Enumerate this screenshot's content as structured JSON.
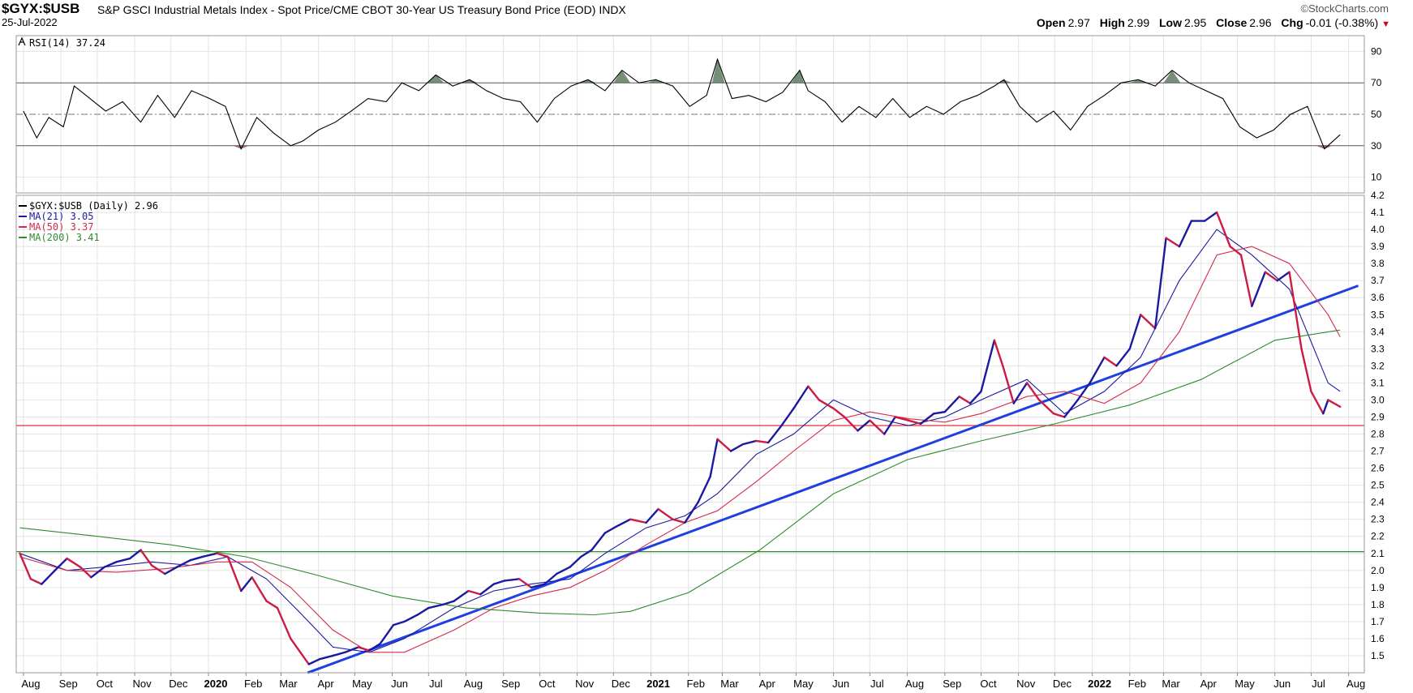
{
  "header": {
    "symbol": "$GYX:$USB",
    "description": "S&P GSCI Industrial Metals Index - Spot Price/CME CBOT 30-Year US Treasury Bond Price (EOD)",
    "exchange": "INDX",
    "date": "25-Jul-2022",
    "brand": "©StockCharts.com",
    "quote": {
      "open_label": "Open",
      "open": "2.97",
      "high_label": "High",
      "high": "2.99",
      "low_label": "Low",
      "low": "2.95",
      "close_label": "Close",
      "close": "2.96",
      "chg_label": "Chg",
      "chg": "-0.01 (-0.38%)"
    }
  },
  "chart_data": [
    {
      "type": "line",
      "panel": "rsi",
      "legend": "RSI(14) 37.24",
      "ylim": [
        0,
        100
      ],
      "y_ticks": [
        10,
        30,
        50,
        70,
        90
      ],
      "reference_lines": [
        30,
        50,
        70
      ],
      "series": [
        {
          "name": "RSI(14)",
          "color": "#000000",
          "x": [
            "2019-08-01",
            "2019-08-12",
            "2019-08-22",
            "2019-09-03",
            "2019-09-12",
            "2019-09-25",
            "2019-10-08",
            "2019-10-22",
            "2019-11-06",
            "2019-11-20",
            "2019-12-04",
            "2019-12-18",
            "2020-01-02",
            "2020-01-15",
            "2020-01-28",
            "2020-02-10",
            "2020-02-24",
            "2020-03-09",
            "2020-03-19",
            "2020-04-01",
            "2020-04-15",
            "2020-04-28",
            "2020-05-12",
            "2020-05-27",
            "2020-06-09",
            "2020-06-23",
            "2020-07-07",
            "2020-07-21",
            "2020-08-04",
            "2020-08-18",
            "2020-09-01",
            "2020-09-15",
            "2020-09-29",
            "2020-10-13",
            "2020-10-27",
            "2020-11-10",
            "2020-11-24",
            "2020-12-08",
            "2020-12-22",
            "2021-01-05",
            "2021-01-19",
            "2021-02-02",
            "2021-02-16",
            "2021-02-25",
            "2021-03-09",
            "2021-03-23",
            "2021-04-06",
            "2021-04-20",
            "2021-05-04",
            "2021-05-11",
            "2021-05-25",
            "2021-06-08",
            "2021-06-22",
            "2021-07-06",
            "2021-07-20",
            "2021-08-03",
            "2021-08-17",
            "2021-08-31",
            "2021-09-14",
            "2021-09-28",
            "2021-10-12",
            "2021-10-20",
            "2021-11-02",
            "2021-11-16",
            "2021-11-30",
            "2021-12-14",
            "2021-12-28",
            "2022-01-11",
            "2022-01-25",
            "2022-02-08",
            "2022-02-22",
            "2022-03-08",
            "2022-03-22",
            "2022-04-05",
            "2022-04-19",
            "2022-05-03",
            "2022-05-17",
            "2022-05-31",
            "2022-06-14",
            "2022-06-28",
            "2022-07-12",
            "2022-07-25"
          ],
          "y": [
            52,
            35,
            48,
            42,
            68,
            60,
            52,
            58,
            45,
            62,
            48,
            65,
            60,
            55,
            28,
            48,
            38,
            30,
            33,
            40,
            45,
            52,
            60,
            58,
            70,
            65,
            75,
            68,
            72,
            65,
            60,
            58,
            45,
            60,
            68,
            72,
            65,
            78,
            70,
            72,
            68,
            55,
            62,
            85,
            60,
            62,
            58,
            64,
            78,
            65,
            58,
            45,
            55,
            48,
            60,
            48,
            55,
            50,
            58,
            62,
            68,
            72,
            55,
            45,
            52,
            40,
            55,
            62,
            70,
            72,
            68,
            78,
            70,
            65,
            60,
            42,
            35,
            40,
            50,
            55,
            28,
            37
          ]
        }
      ]
    },
    {
      "type": "line",
      "panel": "price",
      "ylim": [
        1.4,
        4.2
      ],
      "y_ticks": [
        1.5,
        1.6,
        1.7,
        1.8,
        1.9,
        2.0,
        2.1,
        2.2,
        2.3,
        2.4,
        2.5,
        2.6,
        2.7,
        2.8,
        2.9,
        3.0,
        3.1,
        3.2,
        3.3,
        3.4,
        3.5,
        3.6,
        3.7,
        3.8,
        3.9,
        4.0,
        4.1,
        4.2
      ],
      "x_range": [
        "2019-07-26",
        "2022-08-14"
      ],
      "x_ticks": [
        {
          "date": "2019-08-01",
          "label": "Aug"
        },
        {
          "date": "2019-09-01",
          "label": "Sep"
        },
        {
          "date": "2019-10-01",
          "label": "Oct"
        },
        {
          "date": "2019-11-01",
          "label": "Nov"
        },
        {
          "date": "2019-12-01",
          "label": "Dec"
        },
        {
          "date": "2020-01-01",
          "label": "2020",
          "bold": true
        },
        {
          "date": "2020-02-01",
          "label": "Feb"
        },
        {
          "date": "2020-03-01",
          "label": "Mar"
        },
        {
          "date": "2020-04-01",
          "label": "Apr"
        },
        {
          "date": "2020-05-01",
          "label": "May"
        },
        {
          "date": "2020-06-01",
          "label": "Jun"
        },
        {
          "date": "2020-07-01",
          "label": "Jul"
        },
        {
          "date": "2020-08-01",
          "label": "Aug"
        },
        {
          "date": "2020-09-01",
          "label": "Sep"
        },
        {
          "date": "2020-10-01",
          "label": "Oct"
        },
        {
          "date": "2020-11-01",
          "label": "Nov"
        },
        {
          "date": "2020-12-01",
          "label": "Dec"
        },
        {
          "date": "2021-01-01",
          "label": "2021",
          "bold": true
        },
        {
          "date": "2021-02-01",
          "label": "Feb"
        },
        {
          "date": "2021-03-01",
          "label": "Mar"
        },
        {
          "date": "2021-04-01",
          "label": "Apr"
        },
        {
          "date": "2021-05-01",
          "label": "May"
        },
        {
          "date": "2021-06-01",
          "label": "Jun"
        },
        {
          "date": "2021-07-01",
          "label": "Jul"
        },
        {
          "date": "2021-08-01",
          "label": "Aug"
        },
        {
          "date": "2021-09-01",
          "label": "Sep"
        },
        {
          "date": "2021-10-01",
          "label": "Oct"
        },
        {
          "date": "2021-11-01",
          "label": "Nov"
        },
        {
          "date": "2021-12-01",
          "label": "Dec"
        },
        {
          "date": "2022-01-01",
          "label": "2022",
          "bold": true
        },
        {
          "date": "2022-02-01",
          "label": "Feb"
        },
        {
          "date": "2022-03-01",
          "label": "Mar"
        },
        {
          "date": "2022-04-01",
          "label": "Apr"
        },
        {
          "date": "2022-05-01",
          "label": "May"
        },
        {
          "date": "2022-06-01",
          "label": "Jun"
        },
        {
          "date": "2022-07-01",
          "label": "Jul"
        },
        {
          "date": "2022-08-01",
          "label": "Aug"
        }
      ],
      "series": [
        {
          "name": "$GYX:$USB",
          "legend": "$GYX:$USB (Daily) 2.96",
          "color": "#1a1aa0",
          "down_color": "#cc1b44",
          "x": [
            "2019-07-29",
            "2019-08-07",
            "2019-08-16",
            "2019-08-27",
            "2019-09-06",
            "2019-09-17",
            "2019-09-26",
            "2019-10-07",
            "2019-10-17",
            "2019-10-28",
            "2019-11-06",
            "2019-11-15",
            "2019-11-26",
            "2019-12-06",
            "2019-12-17",
            "2019-12-27",
            "2020-01-08",
            "2020-01-17",
            "2020-01-28",
            "2020-02-06",
            "2020-02-18",
            "2020-02-27",
            "2020-03-09",
            "2020-03-17",
            "2020-03-24",
            "2020-04-02",
            "2020-04-13",
            "2020-04-23",
            "2020-05-04",
            "2020-05-13",
            "2020-05-22",
            "2020-06-02",
            "2020-06-11",
            "2020-06-22",
            "2020-07-01",
            "2020-07-13",
            "2020-07-22",
            "2020-08-03",
            "2020-08-13",
            "2020-08-24",
            "2020-09-02",
            "2020-09-14",
            "2020-09-24",
            "2020-10-05",
            "2020-10-15",
            "2020-10-26",
            "2020-11-04",
            "2020-11-13",
            "2020-11-24",
            "2020-12-04",
            "2020-12-15",
            "2020-12-28",
            "2021-01-07",
            "2021-01-19",
            "2021-01-29",
            "2021-02-09",
            "2021-02-19",
            "2021-02-25",
            "2021-03-08",
            "2021-03-18",
            "2021-03-29",
            "2021-04-08",
            "2021-04-19",
            "2021-04-29",
            "2021-05-11",
            "2021-05-20",
            "2021-06-01",
            "2021-06-10",
            "2021-06-21",
            "2021-07-01",
            "2021-07-13",
            "2021-07-22",
            "2021-08-02",
            "2021-08-12",
            "2021-08-23",
            "2021-09-01",
            "2021-09-13",
            "2021-09-22",
            "2021-10-01",
            "2021-10-12",
            "2021-10-19",
            "2021-10-28",
            "2021-11-08",
            "2021-11-18",
            "2021-11-30",
            "2021-12-09",
            "2021-12-20",
            "2021-12-30",
            "2022-01-11",
            "2022-01-21",
            "2022-02-01",
            "2022-02-10",
            "2022-02-22",
            "2022-03-03",
            "2022-03-14",
            "2022-03-24",
            "2022-04-04",
            "2022-04-14",
            "2022-04-25",
            "2022-05-04",
            "2022-05-13",
            "2022-05-24",
            "2022-06-03",
            "2022-06-13",
            "2022-06-23",
            "2022-07-01",
            "2022-07-11",
            "2022-07-15",
            "2022-07-25"
          ],
          "y": [
            2.1,
            1.95,
            1.92,
            2.0,
            2.07,
            2.02,
            1.96,
            2.02,
            2.05,
            2.07,
            2.12,
            2.03,
            1.98,
            2.02,
            2.06,
            2.08,
            2.1,
            2.08,
            1.88,
            1.96,
            1.82,
            1.78,
            1.6,
            1.52,
            1.45,
            1.48,
            1.5,
            1.52,
            1.55,
            1.53,
            1.57,
            1.68,
            1.7,
            1.74,
            1.78,
            1.8,
            1.82,
            1.88,
            1.86,
            1.92,
            1.94,
            1.95,
            1.9,
            1.92,
            1.98,
            2.02,
            2.08,
            2.12,
            2.22,
            2.26,
            2.3,
            2.28,
            2.36,
            2.3,
            2.28,
            2.4,
            2.55,
            2.77,
            2.7,
            2.74,
            2.76,
            2.75,
            2.85,
            2.95,
            3.08,
            3.0,
            2.95,
            2.9,
            2.82,
            2.88,
            2.8,
            2.9,
            2.88,
            2.86,
            2.92,
            2.93,
            3.02,
            2.98,
            3.05,
            3.35,
            3.2,
            2.98,
            3.1,
            3.0,
            2.92,
            2.9,
            3.0,
            3.1,
            3.25,
            3.2,
            3.3,
            3.5,
            3.42,
            3.95,
            3.9,
            4.05,
            4.05,
            4.1,
            3.9,
            3.85,
            3.55,
            3.75,
            3.7,
            3.75,
            3.3,
            3.05,
            2.92,
            3.0,
            2.96
          ]
        },
        {
          "name": "MA(21)",
          "legend": "MA(21) 3.05",
          "color": "#1a1aa0",
          "x": [
            "2019-07-29",
            "2019-09-06",
            "2019-10-07",
            "2019-11-15",
            "2019-12-17",
            "2020-01-17",
            "2020-02-18",
            "2020-03-17",
            "2020-04-13",
            "2020-05-13",
            "2020-06-11",
            "2020-07-22",
            "2020-08-24",
            "2020-09-24",
            "2020-10-26",
            "2020-11-24",
            "2020-12-28",
            "2021-01-29",
            "2021-02-25",
            "2021-03-29",
            "2021-04-29",
            "2021-06-01",
            "2021-07-01",
            "2021-08-02",
            "2021-09-01",
            "2021-10-01",
            "2021-11-08",
            "2021-12-09",
            "2022-01-11",
            "2022-02-10",
            "2022-03-14",
            "2022-04-14",
            "2022-05-13",
            "2022-06-13",
            "2022-07-15",
            "2022-07-25"
          ],
          "y": [
            2.1,
            2.0,
            2.02,
            2.05,
            2.03,
            2.08,
            1.95,
            1.75,
            1.55,
            1.52,
            1.6,
            1.78,
            1.88,
            1.92,
            1.95,
            2.1,
            2.25,
            2.32,
            2.45,
            2.68,
            2.8,
            3.0,
            2.9,
            2.85,
            2.9,
            3.0,
            3.12,
            2.92,
            3.05,
            3.25,
            3.7,
            4.0,
            3.85,
            3.65,
            3.1,
            3.05
          ]
        },
        {
          "name": "MA(50)",
          "legend": "MA(50) 3.37",
          "color": "#d42a4a",
          "x": [
            "2019-07-29",
            "2019-09-06",
            "2019-10-17",
            "2019-11-26",
            "2020-01-08",
            "2020-02-06",
            "2020-03-09",
            "2020-04-13",
            "2020-05-13",
            "2020-06-11",
            "2020-07-22",
            "2020-08-24",
            "2020-09-24",
            "2020-10-26",
            "2020-11-24",
            "2020-12-28",
            "2021-01-29",
            "2021-02-25",
            "2021-03-29",
            "2021-04-29",
            "2021-06-01",
            "2021-07-01",
            "2021-08-02",
            "2021-09-01",
            "2021-10-01",
            "2021-11-08",
            "2021-12-09",
            "2022-01-11",
            "2022-02-10",
            "2022-03-14",
            "2022-04-14",
            "2022-05-13",
            "2022-06-13",
            "2022-07-15",
            "2022-07-25"
          ],
          "y": [
            2.08,
            2.0,
            1.99,
            2.01,
            2.05,
            2.05,
            1.9,
            1.65,
            1.52,
            1.52,
            1.65,
            1.78,
            1.85,
            1.9,
            2.0,
            2.15,
            2.28,
            2.35,
            2.52,
            2.7,
            2.88,
            2.93,
            2.89,
            2.87,
            2.92,
            3.02,
            3.05,
            2.98,
            3.1,
            3.4,
            3.85,
            3.9,
            3.8,
            3.5,
            3.37
          ]
        },
        {
          "name": "MA(200)",
          "legend": "MA(200) 3.41",
          "color": "#2e8b2e",
          "x": [
            "2019-07-29",
            "2019-10-01",
            "2019-12-01",
            "2020-02-01",
            "2020-04-01",
            "2020-06-01",
            "2020-08-01",
            "2020-10-01",
            "2020-11-15",
            "2020-12-15",
            "2021-02-01",
            "2021-04-01",
            "2021-06-01",
            "2021-08-01",
            "2021-10-01",
            "2021-12-01",
            "2022-02-01",
            "2022-04-01",
            "2022-06-01",
            "2022-07-25"
          ],
          "y": [
            2.25,
            2.2,
            2.15,
            2.08,
            1.97,
            1.85,
            1.78,
            1.75,
            1.74,
            1.76,
            1.87,
            2.12,
            2.45,
            2.65,
            2.76,
            2.86,
            2.97,
            3.12,
            3.35,
            3.41
          ]
        }
      ],
      "annotations": [
        {
          "type": "hline",
          "y": 2.85,
          "color": "#e03030"
        },
        {
          "type": "hline",
          "y": 2.11,
          "color": "#2e8b2e"
        },
        {
          "type": "trendline",
          "x": [
            "2020-03-23",
            "2022-08-09"
          ],
          "y": [
            1.4,
            3.67
          ],
          "color": "#1f3fe0"
        }
      ]
    }
  ]
}
